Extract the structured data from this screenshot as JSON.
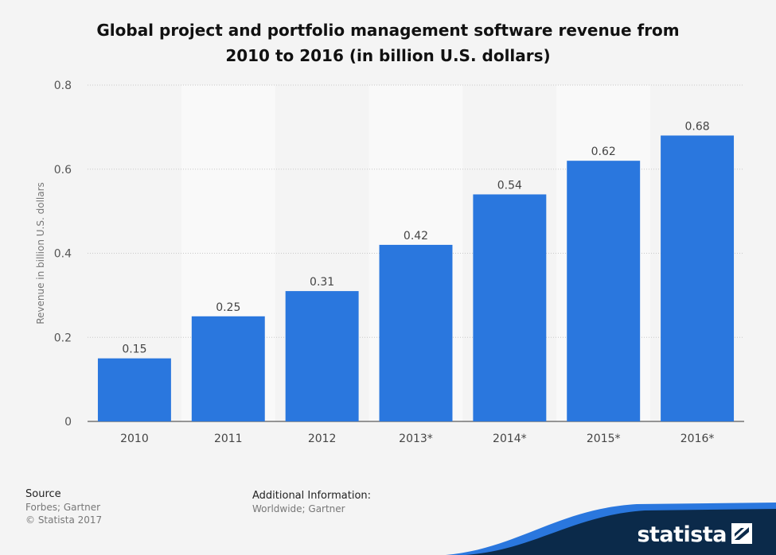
{
  "title_line1": "Global project and portfolio management software revenue from",
  "title_line2": "2010 to 2016 (in billion U.S. dollars)",
  "chart_data": {
    "type": "bar",
    "title": "Global project and portfolio management software revenue from 2010 to 2016 (in billion U.S. dollars)",
    "categories": [
      "2010",
      "2011",
      "2012",
      "2013*",
      "2014*",
      "2015*",
      "2016*"
    ],
    "values": [
      0.15,
      0.25,
      0.31,
      0.42,
      0.54,
      0.62,
      0.68
    ],
    "value_labels": [
      "0.15",
      "0.25",
      "0.31",
      "0.42",
      "0.54",
      "0.62",
      "0.68"
    ],
    "xlabel": "",
    "ylabel": "Revenue in billion U.S. dollars",
    "ylim": [
      0,
      0.8
    ],
    "yticks": [
      0,
      0.2,
      0.4,
      0.6,
      0.8
    ],
    "ytick_labels": [
      "0",
      "0.2",
      "0.4",
      "0.6",
      "0.8"
    ],
    "grid": true,
    "bar_color": "#2a77de"
  },
  "footer": {
    "source_heading": "Source",
    "source_line1": "Forbes; Gartner",
    "source_line2": "© Statista 2017",
    "info_heading": "Additional Information:",
    "info_line1": "Worldwide; Gartner"
  },
  "brand": {
    "name": "statista",
    "band_color": "#0b2a4a",
    "accent_color": "#2a77de"
  }
}
